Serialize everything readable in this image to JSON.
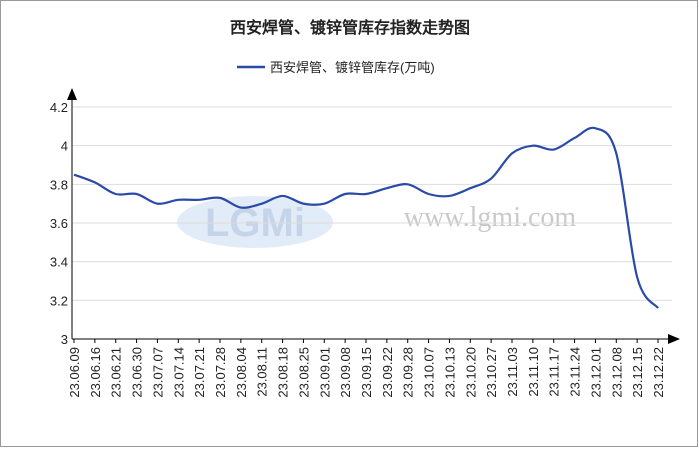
{
  "chart_data": {
    "type": "line",
    "title": "西安焊管、镀锌管库存指数走势图",
    "watermark": "www.lgmi.com",
    "watermark_logo": "LGMi",
    "categories": [
      "23.06.09",
      "23.06.16",
      "23.06.21",
      "23.06.30",
      "23.07.07",
      "23.07.14",
      "23.07.21",
      "23.07.28",
      "23.08.04",
      "23.08.11",
      "23.08.18",
      "23.08.25",
      "23.09.01",
      "23.09.08",
      "23.09.15",
      "23.09.22",
      "23.09.28",
      "23.10.07",
      "23.10.13",
      "23.10.20",
      "23.10.27",
      "23.11.03",
      "23.11.10",
      "23.11.17",
      "23.11.24",
      "23.12.01",
      "23.12.08",
      "23.12.15",
      "23.12.22"
    ],
    "series": [
      {
        "name": "西安焊管、镀锌管库存(万吨)",
        "color": "#2a4aa8",
        "values": [
          3.85,
          3.81,
          3.75,
          3.75,
          3.7,
          3.72,
          3.72,
          3.73,
          3.68,
          3.7,
          3.74,
          3.7,
          3.7,
          3.75,
          3.75,
          3.78,
          3.8,
          3.75,
          3.74,
          3.78,
          3.83,
          3.96,
          4.0,
          3.98,
          4.04,
          4.09,
          3.96,
          3.32,
          3.16
        ]
      }
    ],
    "ylim": [
      3,
      4.2
    ],
    "yticks": [
      3,
      3.2,
      3.4,
      3.6,
      3.8,
      4,
      4.2
    ],
    "grid": true,
    "legend": "top"
  }
}
